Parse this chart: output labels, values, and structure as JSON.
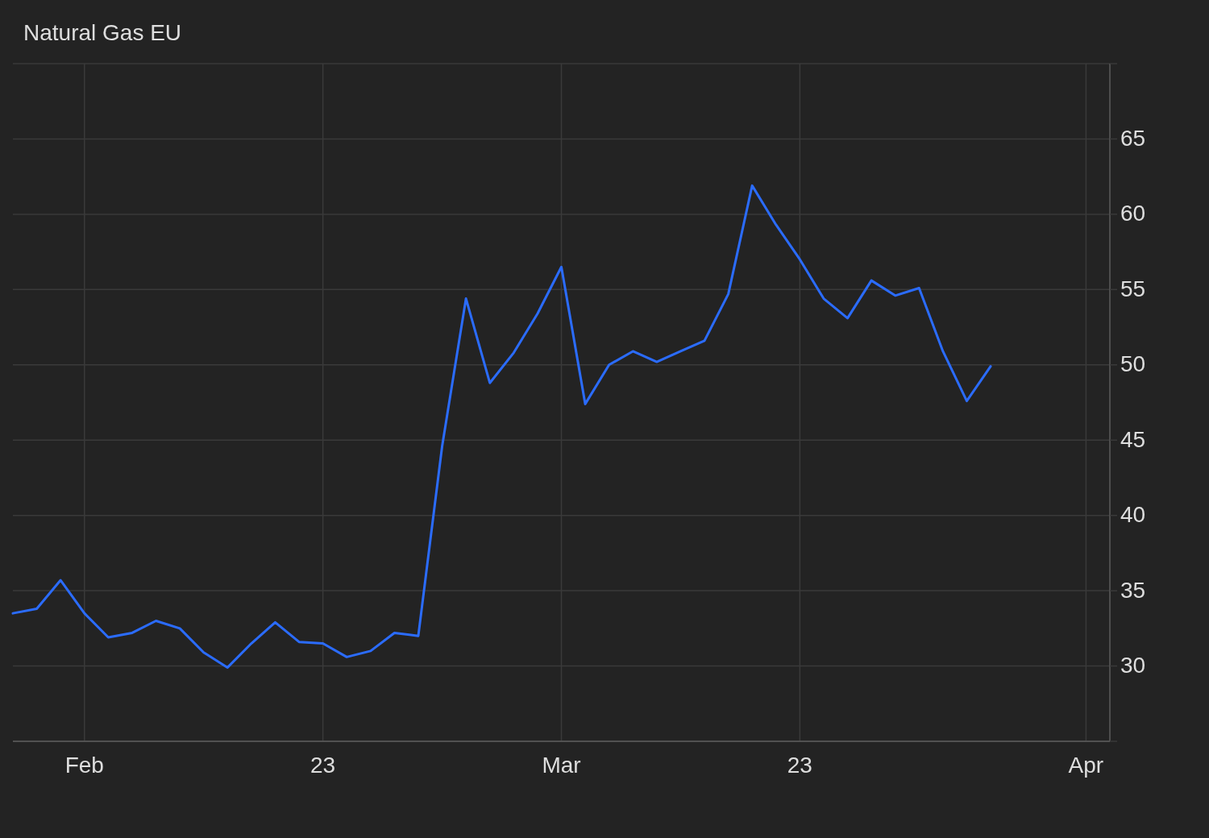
{
  "chart_data": {
    "type": "line",
    "title": "Natural Gas EU",
    "categories": [
      null,
      null,
      null,
      "Feb",
      null,
      null,
      null,
      null,
      null,
      null,
      null,
      null,
      null,
      "23",
      null,
      null,
      null,
      null,
      null,
      null,
      null,
      null,
      null,
      "Mar",
      null,
      null,
      null,
      null,
      null,
      null,
      null,
      null,
      null,
      "23",
      null,
      null,
      null,
      null,
      null,
      null,
      null,
      null,
      null,
      null,
      null,
      "Apr"
    ],
    "series": [
      {
        "color": "#2b6cff",
        "values": [
          33.5,
          33.8,
          35.7,
          33.5,
          31.9,
          32.2,
          33.0,
          32.5,
          30.9,
          29.9,
          31.5,
          32.9,
          31.6,
          31.5,
          30.6,
          31.0,
          32.2,
          32.0,
          44.6,
          54.4,
          48.8,
          50.8,
          53.4,
          56.5,
          47.4,
          50.0,
          50.9,
          50.2,
          50.9,
          51.6,
          54.7,
          61.9,
          59.3,
          57.0,
          54.4,
          53.1,
          55.6,
          54.6,
          55.1,
          50.9,
          47.6,
          49.9,
          null,
          null,
          null,
          null
        ]
      }
    ],
    "ylim": [
      25,
      70
    ],
    "yticks": [
      {
        "value": 25,
        "label": null
      },
      30,
      35,
      40,
      45,
      50,
      55,
      60,
      65,
      {
        "value": 70,
        "label": null
      }
    ],
    "grid": true
  }
}
